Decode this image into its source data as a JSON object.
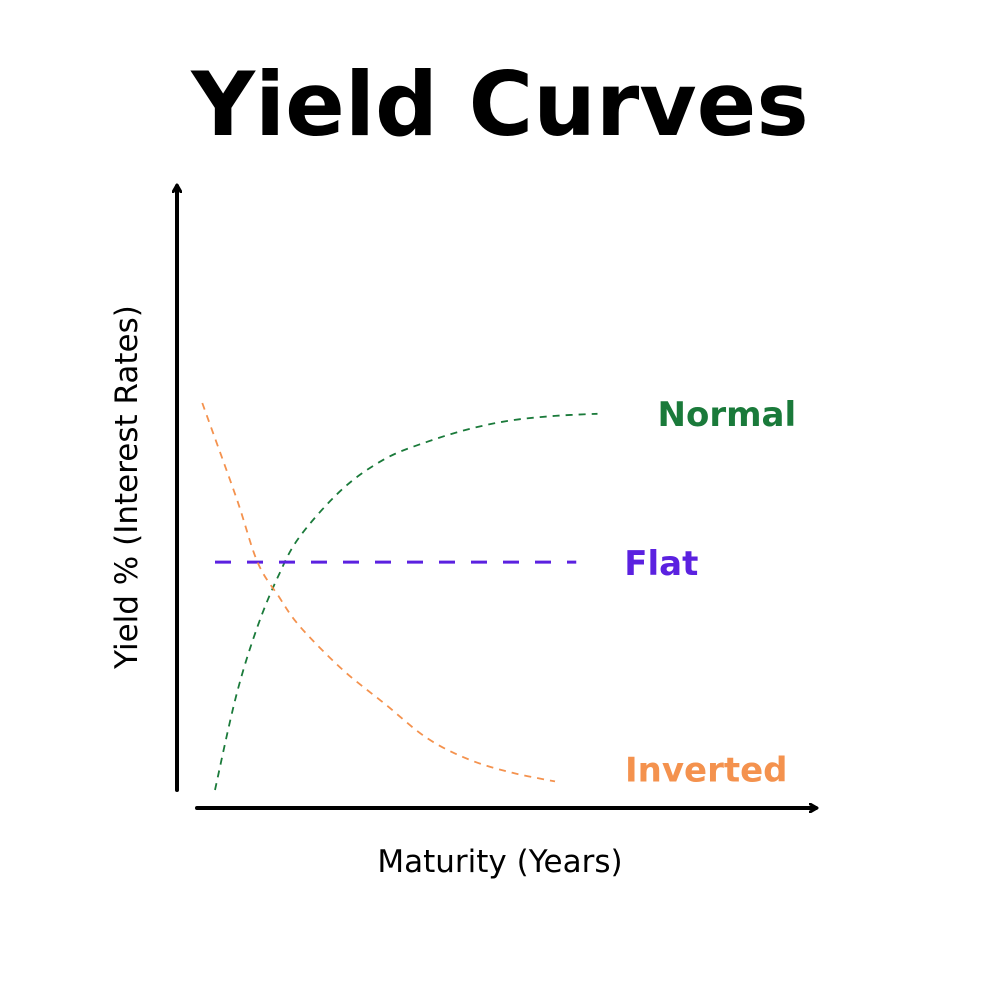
{
  "chart_data": {
    "type": "line",
    "title": "Yield Curves",
    "xlabel": "Maturity (Years)",
    "ylabel": "Yield % (Interest Rates)",
    "grid": false,
    "legend": "none",
    "xlim": [
      0,
      10
    ],
    "ylim": [
      0,
      10
    ],
    "series": [
      {
        "name": "Normal",
        "color": "#1a7a3a",
        "x": [
          0.0,
          0.5,
          1.0,
          1.5,
          2.0,
          3.0,
          4.0,
          5.0,
          6.0,
          7.0,
          8.0,
          9.0
        ],
        "y": [
          0.0,
          2.2,
          3.8,
          5.0,
          5.9,
          7.0,
          7.7,
          8.1,
          8.4,
          8.6,
          8.7,
          8.75
        ]
      },
      {
        "name": "Flat",
        "color": "#5b21e0",
        "x": [
          0.0,
          8.5
        ],
        "y": [
          5.3,
          5.3
        ]
      },
      {
        "name": "Inverted",
        "color": "#f4924e",
        "x": [
          -0.3,
          0.5,
          1.0,
          1.5,
          2.0,
          3.0,
          4.0,
          5.0,
          6.0,
          7.0,
          8.0
        ],
        "y": [
          9.0,
          6.8,
          5.3,
          4.5,
          3.8,
          2.8,
          2.0,
          1.2,
          0.7,
          0.4,
          0.2
        ]
      }
    ]
  }
}
